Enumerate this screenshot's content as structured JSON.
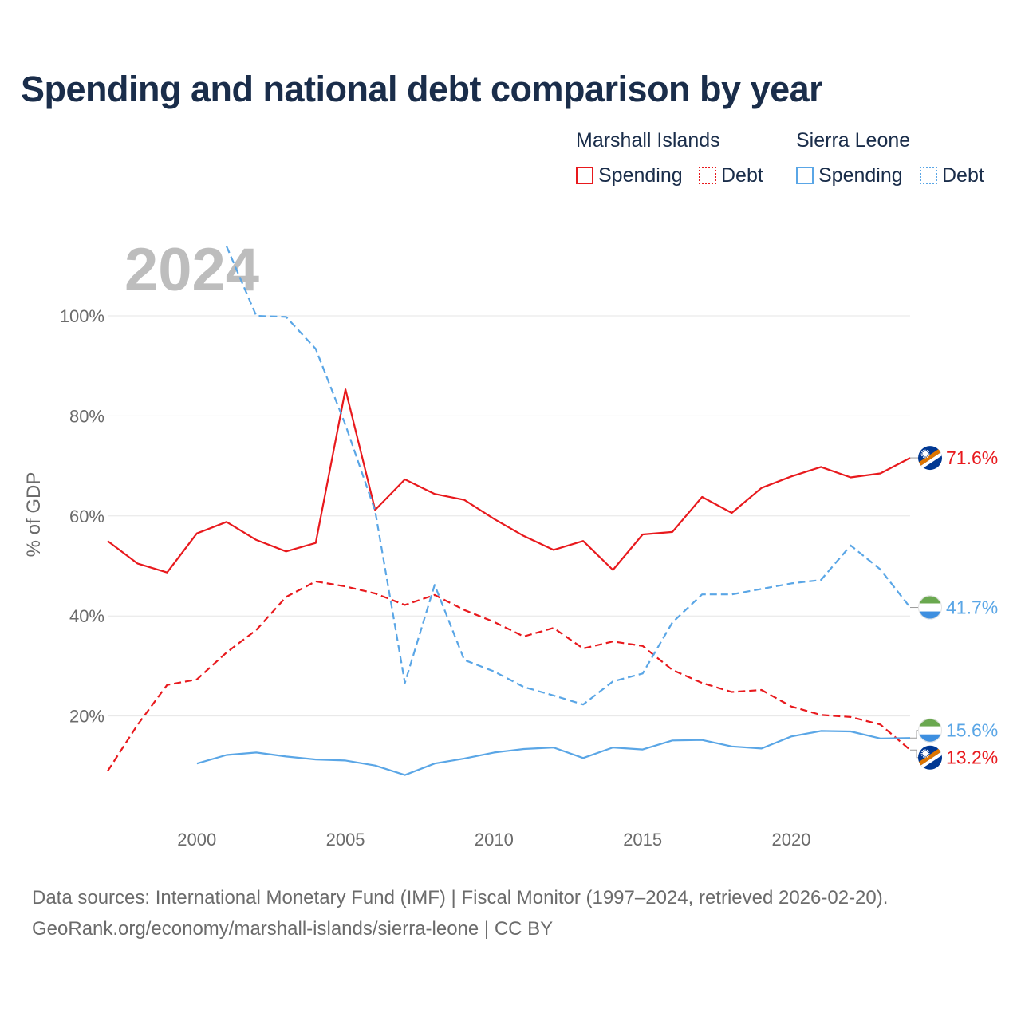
{
  "title": "Spending and national debt comparison by year",
  "legend": {
    "groups": [
      {
        "name": "Marshall Islands",
        "color": "#e8191d",
        "items": [
          "Spending",
          "Debt"
        ]
      },
      {
        "name": "Sierra Leone",
        "color": "#5aa6e6",
        "items": [
          "Spending",
          "Debt"
        ]
      }
    ]
  },
  "sources": {
    "line1": "Data sources: International Monetary Fund (IMF) | Fiscal Monitor (1997–2024, retrieved 2026-02-20).",
    "line2": "GeoRank.org/economy/marshall-islands/sierra-leone | CC BY"
  },
  "chart_data": {
    "type": "line",
    "watermark_year": "2024",
    "ylabel": "% of GDP",
    "xlabel": "",
    "xlim": [
      1997,
      2024
    ],
    "ylim": [
      0,
      115
    ],
    "x_ticks": [
      2000,
      2005,
      2010,
      2015,
      2020
    ],
    "y_ticks": [
      20,
      40,
      60,
      80,
      100
    ],
    "y_tick_labels": [
      "20%",
      "40%",
      "60%",
      "80%",
      "100%"
    ],
    "grid": true,
    "series": [
      {
        "name": "Marshall Islands Spending",
        "country": "Marshall Islands",
        "metric": "Spending",
        "color": "#e8191d",
        "dash": "solid",
        "end_label": "71.6%",
        "flag": "marshall",
        "x": [
          1997,
          1998,
          1999,
          2000,
          2001,
          2002,
          2003,
          2004,
          2005,
          2006,
          2007,
          2008,
          2009,
          2010,
          2011,
          2012,
          2013,
          2014,
          2015,
          2016,
          2017,
          2018,
          2019,
          2020,
          2021,
          2022,
          2023,
          2024
        ],
        "values": [
          55.0,
          50.5,
          48.7,
          56.5,
          58.8,
          55.2,
          52.9,
          54.6,
          85.3,
          61.2,
          67.3,
          64.4,
          63.2,
          59.4,
          56.0,
          53.2,
          55.0,
          49.2,
          56.3,
          56.8,
          63.8,
          60.6,
          65.6,
          67.9,
          69.8,
          67.7,
          68.5,
          71.6
        ]
      },
      {
        "name": "Marshall Islands Debt",
        "country": "Marshall Islands",
        "metric": "Debt",
        "color": "#e8191d",
        "dash": "dashed",
        "end_label": "13.2%",
        "flag": "marshall",
        "x": [
          1997,
          1998,
          1999,
          2000,
          2001,
          2002,
          2003,
          2004,
          2005,
          2006,
          2007,
          2008,
          2009,
          2010,
          2011,
          2012,
          2013,
          2014,
          2015,
          2016,
          2017,
          2018,
          2019,
          2020,
          2021,
          2022,
          2023,
          2024
        ],
        "values": [
          9.0,
          18.2,
          26.2,
          27.3,
          32.7,
          37.2,
          43.8,
          46.9,
          45.9,
          44.5,
          42.2,
          44.2,
          41.2,
          38.8,
          35.9,
          37.6,
          33.5,
          34.9,
          34.0,
          29.2,
          26.6,
          24.8,
          25.2,
          21.9,
          20.2,
          19.8,
          18.3,
          13.2
        ]
      },
      {
        "name": "Sierra Leone Spending",
        "country": "Sierra Leone",
        "metric": "Spending",
        "color": "#5aa6e6",
        "dash": "solid",
        "end_label": "15.6%",
        "flag": "sierra",
        "x": [
          2000,
          2001,
          2002,
          2003,
          2004,
          2005,
          2006,
          2007,
          2008,
          2009,
          2010,
          2011,
          2012,
          2013,
          2014,
          2015,
          2016,
          2017,
          2018,
          2019,
          2020,
          2021,
          2022,
          2023,
          2024
        ],
        "values": [
          10.5,
          12.2,
          12.7,
          11.9,
          11.3,
          11.1,
          10.1,
          8.2,
          10.5,
          11.5,
          12.7,
          13.4,
          13.7,
          11.6,
          13.7,
          13.3,
          15.1,
          15.2,
          13.9,
          13.5,
          15.9,
          17.0,
          16.9,
          15.5,
          15.6
        ]
      },
      {
        "name": "Sierra Leone Debt",
        "country": "Sierra Leone",
        "metric": "Debt",
        "color": "#5aa6e6",
        "dash": "dashed",
        "end_label": "41.7%",
        "flag": "sierra",
        "x": [
          2001,
          2002,
          2003,
          2004,
          2005,
          2006,
          2007,
          2008,
          2009,
          2010,
          2011,
          2012,
          2013,
          2014,
          2015,
          2016,
          2017,
          2018,
          2019,
          2020,
          2021,
          2022,
          2023,
          2024
        ],
        "values": [
          113.9,
          100.0,
          99.8,
          93.4,
          78.2,
          61.0,
          26.6,
          46.2,
          31.2,
          28.9,
          25.8,
          24.1,
          22.3,
          26.9,
          28.5,
          38.7,
          44.3,
          44.3,
          45.4,
          46.5,
          47.2,
          54.1,
          49.3,
          41.7
        ]
      }
    ]
  }
}
